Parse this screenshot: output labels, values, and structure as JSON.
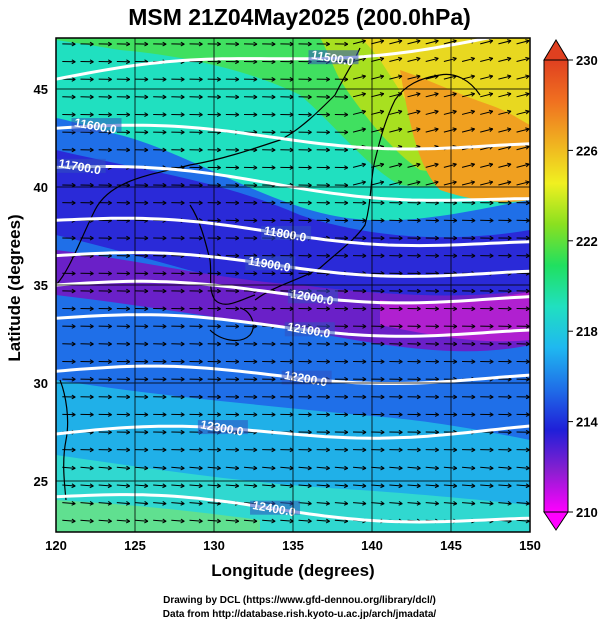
{
  "title": "MSM 21Z04May2025 (200.0hPa)",
  "map": {
    "x_axis": {
      "label": "Longitude (degrees)",
      "range": [
        120,
        150
      ],
      "ticks": [
        120,
        125,
        130,
        135,
        140,
        145,
        150
      ],
      "tick_labels": [
        "120",
        "125",
        "130",
        "135",
        "140",
        "145",
        "150"
      ]
    },
    "y_axis": {
      "label": "Latitude  (degrees)",
      "range": [
        22.4,
        47.6
      ],
      "ticks": [
        25,
        30,
        35,
        40,
        45
      ],
      "tick_labels": [
        "25",
        "30",
        "35",
        "40",
        "45"
      ]
    },
    "grid": true,
    "shading": "temperature",
    "vectors": "wind (mostly westerly)",
    "contours": {
      "color": "#ffffff",
      "levels": [
        {
          "value": 11500,
          "label": "11500.0",
          "lat_at_120": 45.5,
          "lat_at_150": 47.8,
          "label_lon": 137.5
        },
        {
          "value": 11600,
          "label": "11600.0",
          "lat_at_120": 43.0,
          "lat_at_150": 42.0,
          "label_lon": 122.5
        },
        {
          "value": 11700,
          "label": "11700.0",
          "lat_at_120": 41.0,
          "lat_at_150": 39.2,
          "label_lon": 121.5
        },
        {
          "value": 11800,
          "label": "11800.0",
          "lat_at_120": 38.3,
          "lat_at_150": 37.0,
          "label_lon": 134.5
        },
        {
          "value": 11900,
          "label": "11900.0",
          "lat_at_120": 36.5,
          "lat_at_150": 35.5,
          "label_lon": 133.5
        },
        {
          "value": 12000,
          "label": "12000.0",
          "lat_at_120": 35.0,
          "lat_at_150": 34.2,
          "label_lon": 136.2
        },
        {
          "value": 12100,
          "label": "12100.0",
          "lat_at_120": 33.3,
          "lat_at_150": 32.5,
          "label_lon": 136.0
        },
        {
          "value": 12200,
          "label": "12200.0",
          "lat_at_120": 30.6,
          "lat_at_150": 30.2,
          "label_lon": 135.8
        },
        {
          "value": 12300,
          "label": "12300.0",
          "lat_at_120": 27.4,
          "lat_at_150": 27.6,
          "label_lon": 130.5
        },
        {
          "value": 12400,
          "label": "12400.0",
          "lat_at_120": 24.2,
          "lat_at_150": 22.9,
          "label_lon": 133.8
        }
      ]
    }
  },
  "colorbar": {
    "min": 210,
    "max": 230,
    "tick_labels": [
      "230",
      "226",
      "222",
      "218",
      "214",
      "210"
    ],
    "colors": [
      "#ff00ff",
      "#8a1fd0",
      "#1f1fd8",
      "#1f6fe8",
      "#1fb8f0",
      "#20e0c0",
      "#20e060",
      "#8ae020",
      "#f0f020",
      "#f0b020",
      "#f07020",
      "#e04020"
    ]
  },
  "credits": {
    "line1": "Drawing by DCL (https://www.gfd-dennou.org/library/dcl/)",
    "line2": "Data from http://database.rish.kyoto-u.ac.jp/arch/jmadata/"
  }
}
